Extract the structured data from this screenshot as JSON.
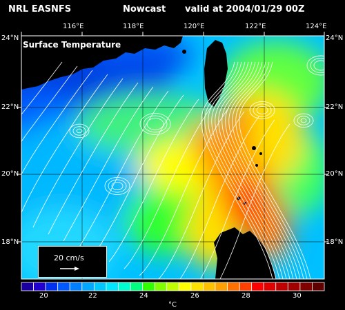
{
  "header": {
    "left": "NRL EASNFS",
    "middle": "Nowcast",
    "right": "valid at 2004/01/29 00Z"
  },
  "map": {
    "field_label": "Surface Temperature",
    "lon_ticks": [
      "116°E",
      "118°E",
      "120°E",
      "122°E",
      "124°E"
    ],
    "lat_ticks_left": [
      "24°N",
      "22°N",
      "20°N",
      "18°N"
    ],
    "lat_ticks_right": [
      "24°N",
      "22°N",
      "20°N",
      "18°N"
    ],
    "land_color": "#000000",
    "icons": [
      "velocity-vector-icon"
    ]
  },
  "vector_legend": {
    "text": "20 cm/s"
  },
  "colorbar": {
    "tick_labels": [
      "20",
      "22",
      "24",
      "26",
      "28",
      "30"
    ],
    "unit": "°C",
    "colors": [
      "#1a00a0",
      "#2200d0",
      "#0030f0",
      "#0058ff",
      "#0080ff",
      "#00a8ff",
      "#00c8ff",
      "#00e8ff",
      "#00ffd0",
      "#00ff80",
      "#30ff00",
      "#80ff00",
      "#c0ff00",
      "#ffff00",
      "#ffe000",
      "#ffc000",
      "#ffa000",
      "#ff7000",
      "#ff4000",
      "#ff0000",
      "#e00000",
      "#c00000",
      "#a00000",
      "#800000",
      "#600000"
    ]
  }
}
